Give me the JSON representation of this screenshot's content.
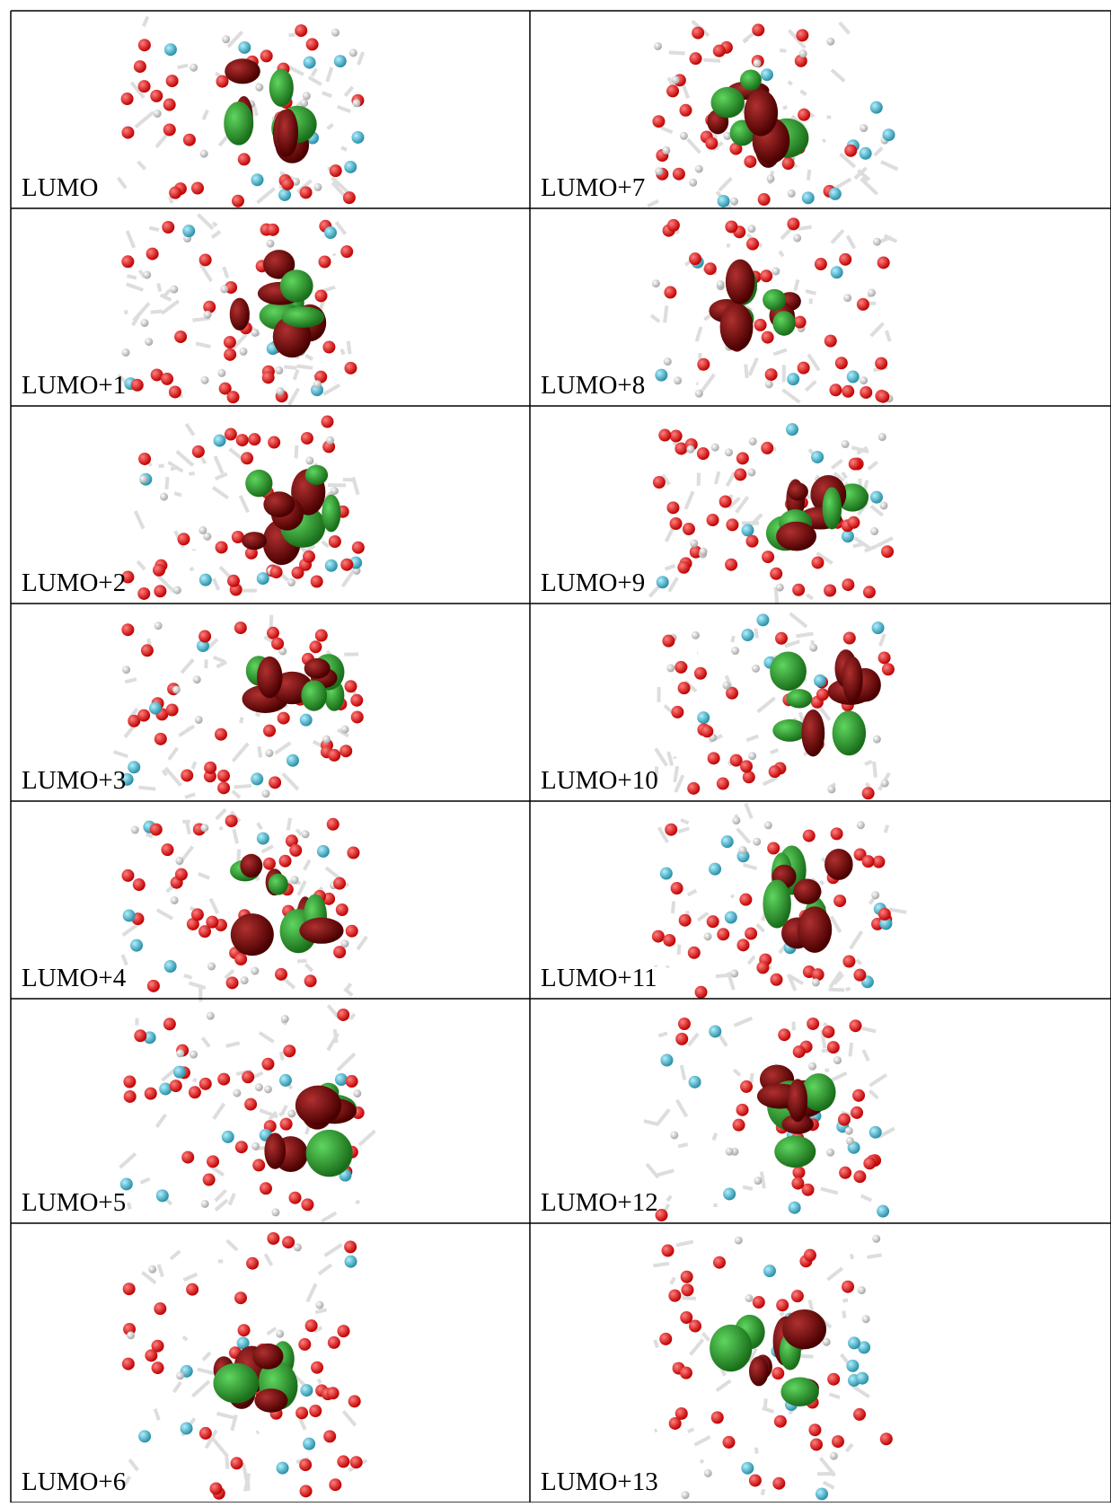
{
  "table": {
    "rows": [
      [
        "LUMO",
        "LUMO+7"
      ],
      [
        "LUMO+1",
        "LUMO+8"
      ],
      [
        "LUMO+2",
        "LUMO+9"
      ],
      [
        "LUMO+3",
        "LUMO+10"
      ],
      [
        "LUMO+4",
        "LUMO+11"
      ],
      [
        "LUMO+5",
        "LUMO+12"
      ],
      [
        "LUMO+6",
        "LUMO+13"
      ]
    ]
  }
}
